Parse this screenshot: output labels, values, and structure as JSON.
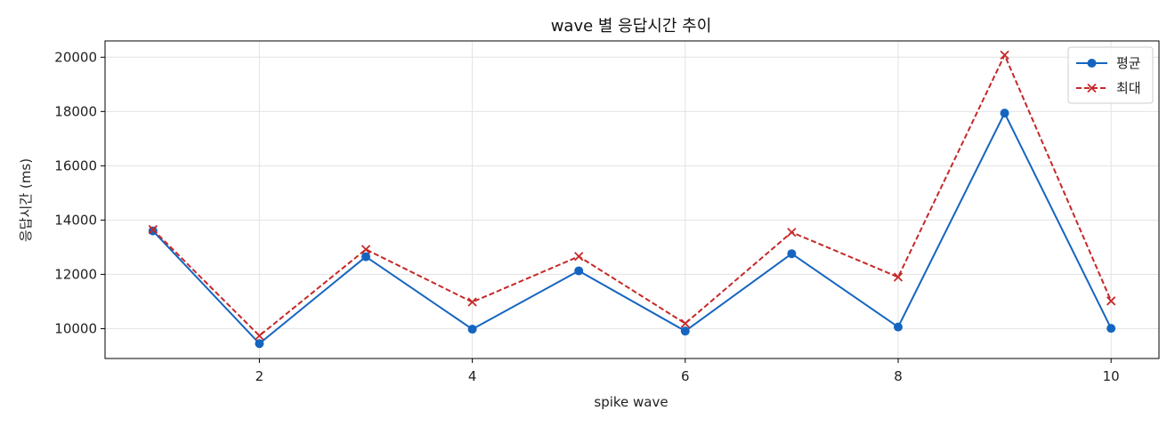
{
  "chart_data": {
    "type": "line",
    "title": "wave 별 응답시간 추이",
    "xlabel": "spike wave",
    "ylabel": "응답시간 (ms)",
    "x": [
      1,
      2,
      3,
      4,
      5,
      6,
      7,
      8,
      9,
      10
    ],
    "xlim": [
      0.55,
      10.45
    ],
    "ylim": [
      8900,
      20600
    ],
    "xticks": [
      2,
      4,
      6,
      8,
      10
    ],
    "yticks": [
      10000,
      12000,
      14000,
      16000,
      18000,
      20000
    ],
    "grid": true,
    "legend_position": "top-right",
    "series": [
      {
        "name": "평균",
        "values": [
          13600,
          9450,
          12650,
          9980,
          12130,
          9910,
          12760,
          10060,
          17940,
          10010
        ],
        "color": "#1565c0",
        "line_style": "solid",
        "marker": "circle"
      },
      {
        "name": "최대",
        "values": [
          13650,
          9740,
          12920,
          10980,
          12660,
          10190,
          13550,
          11900,
          20080,
          11020
        ],
        "color": "#c62828",
        "line_style": "dashed",
        "marker": "x"
      }
    ]
  }
}
